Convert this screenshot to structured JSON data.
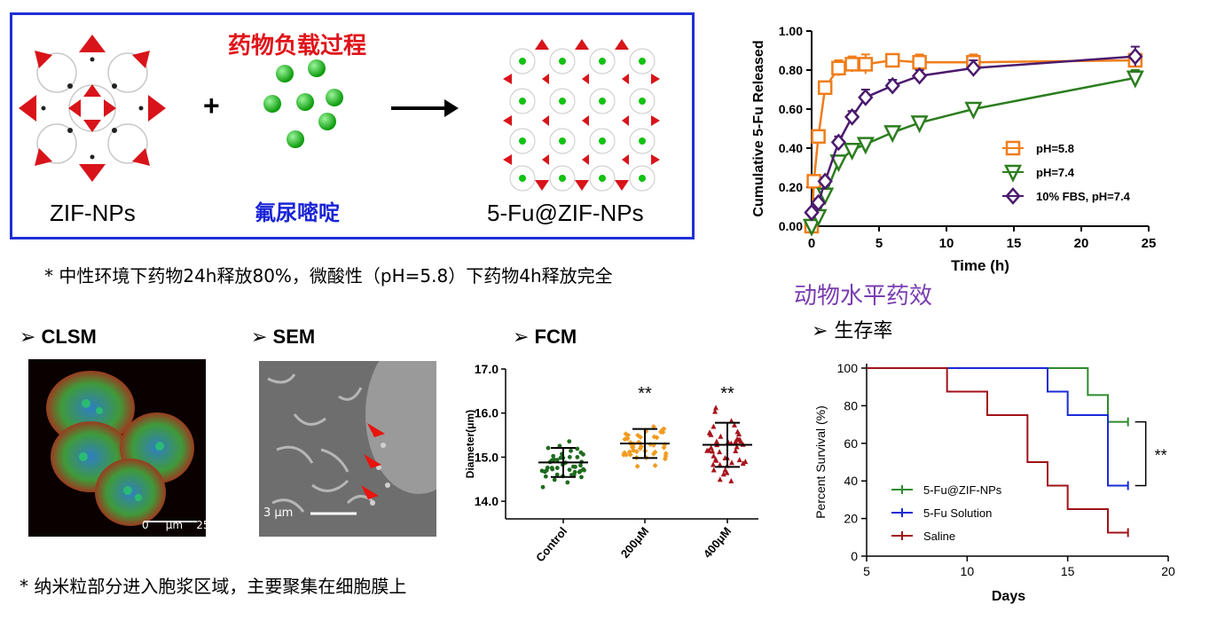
{
  "scheme": {
    "process_title": "药物负载过程",
    "left_label": "ZIF-NPs",
    "plus": "+",
    "drug_name": "氟尿嘧啶",
    "right_label": "5-Fu@ZIF-NPs"
  },
  "notes": {
    "release_note": "*  中性环境下药物24h释放80%，微酸性（pH=5.8）下药物4h释放完全",
    "cell_note": "*  纳米粒部分进入胞浆区域，主要聚集在细胞膜上"
  },
  "sections": {
    "clsm": "➢ CLSM",
    "sem": "➢ SEM",
    "fcm": "➢ FCM",
    "animal": "动物水平药效",
    "survival": "➢ 生存率"
  },
  "images": {
    "clsm_scale": "0     μm    25",
    "sem_scale": "3 μm"
  },
  "colors": {
    "box_border": "#1f2fd6",
    "ph58": "#f07d1a",
    "ph74": "#2b7d1e",
    "fbs": "#4b1a6e",
    "zif": "#2e8b2e",
    "sol": "#1a2bd6",
    "saline": "#a0121a",
    "control": "#1f6b1f",
    "m200": "#f29b21",
    "m400": "#a8141c"
  },
  "chart_data": [
    {
      "type": "line",
      "xlabel": "Time (h)",
      "ylabel": "Cumulative 5-Fu Released",
      "xlim": [
        0,
        25
      ],
      "ylim": [
        0,
        1.0
      ],
      "xticks": [
        "0",
        "5",
        "10",
        "15",
        "20",
        "25"
      ],
      "yticks": [
        "0.00",
        "0.20",
        "0.40",
        "0.60",
        "0.80",
        "1.00"
      ],
      "legend_position": "bottom-right",
      "series": [
        {
          "name": "pH=5.8",
          "marker": "square",
          "x": [
            0,
            0.17,
            0.5,
            1,
            2,
            3,
            4,
            6,
            8,
            12,
            24
          ],
          "y": [
            0.0,
            0.23,
            0.46,
            0.71,
            0.81,
            0.83,
            0.83,
            0.85,
            0.84,
            0.84,
            0.85
          ],
          "err": [
            0.01,
            0.02,
            0.02,
            0.03,
            0.04,
            0.04,
            0.05,
            0.02,
            0.04,
            0.04,
            0.03
          ]
        },
        {
          "name": "pH=7.4",
          "marker": "triangle-down",
          "x": [
            0,
            0.5,
            1,
            2,
            3,
            4,
            6,
            8,
            12,
            24
          ],
          "y": [
            0.0,
            0.05,
            0.16,
            0.33,
            0.39,
            0.42,
            0.48,
            0.53,
            0.6,
            0.76
          ],
          "err": [
            0.01,
            0.01,
            0.02,
            0.03,
            0.03,
            0.03,
            0.03,
            0.03,
            0.03,
            0.04
          ]
        },
        {
          "name": "10% FBS, pH=7.4",
          "marker": "diamond",
          "x": [
            0,
            0.5,
            1,
            2,
            3,
            4,
            6,
            8,
            12,
            24
          ],
          "y": [
            0.07,
            0.12,
            0.23,
            0.43,
            0.56,
            0.66,
            0.72,
            0.77,
            0.81,
            0.87
          ],
          "err": [
            0.01,
            0.02,
            0.02,
            0.03,
            0.03,
            0.04,
            0.03,
            0.03,
            0.04,
            0.05
          ]
        }
      ]
    },
    {
      "type": "scatter",
      "ylabel": "Diameter(μm)",
      "ylim": [
        13.6,
        17.0
      ],
      "yticks": [
        "14.0",
        "15.0",
        "16.0",
        "17.0"
      ],
      "categories": [
        "Control",
        "200μM",
        "400μM"
      ],
      "means": [
        14.88,
        15.31,
        15.28
      ],
      "sd": [
        0.33,
        0.33,
        0.5
      ],
      "significance": [
        "",
        "**",
        "**"
      ]
    },
    {
      "type": "line",
      "xlabel": "Days",
      "ylabel": "Percent Survival (%)",
      "xlim": [
        5,
        20
      ],
      "ylim": [
        0,
        100
      ],
      "xticks": [
        "5",
        "10",
        "15",
        "20"
      ],
      "yticks": [
        "0",
        "20",
        "40",
        "60",
        "80",
        "100"
      ],
      "legend_position": "bottom-left",
      "significance": "**",
      "series": [
        {
          "name": "5-Fu@ZIF-NPs",
          "x": [
            5,
            16,
            17,
            18
          ],
          "y": [
            100,
            85.7,
            71.4,
            71.4
          ]
        },
        {
          "name": "5-Fu Solution",
          "x": [
            5,
            14,
            15,
            17,
            18
          ],
          "y": [
            100,
            87.5,
            75,
            37.5,
            37.5
          ]
        },
        {
          "name": "Saline",
          "x": [
            5,
            9,
            11,
            13,
            14,
            15,
            17,
            18
          ],
          "y": [
            100,
            87.5,
            75,
            50,
            37.5,
            25,
            12.5,
            12.5
          ]
        }
      ]
    }
  ]
}
